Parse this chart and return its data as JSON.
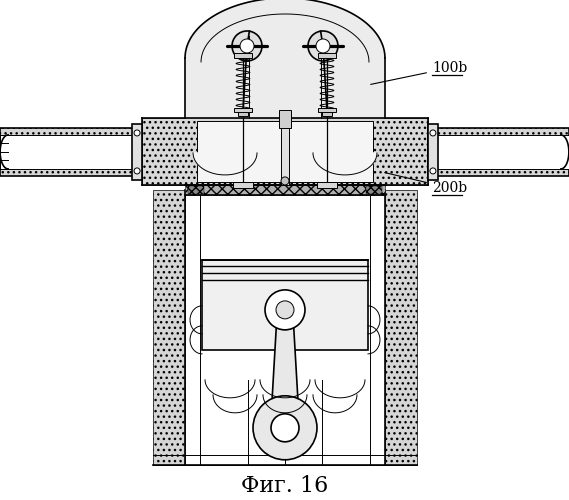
{
  "title": "Фиг. 16",
  "label_100b": "100b",
  "label_200b": "200b",
  "bg_color": "#ffffff",
  "line_color": "#000000",
  "fill_light": "#e8e8e8",
  "fill_dots": "#d0d0d0",
  "title_fontsize": 16,
  "label_fontsize": 10
}
